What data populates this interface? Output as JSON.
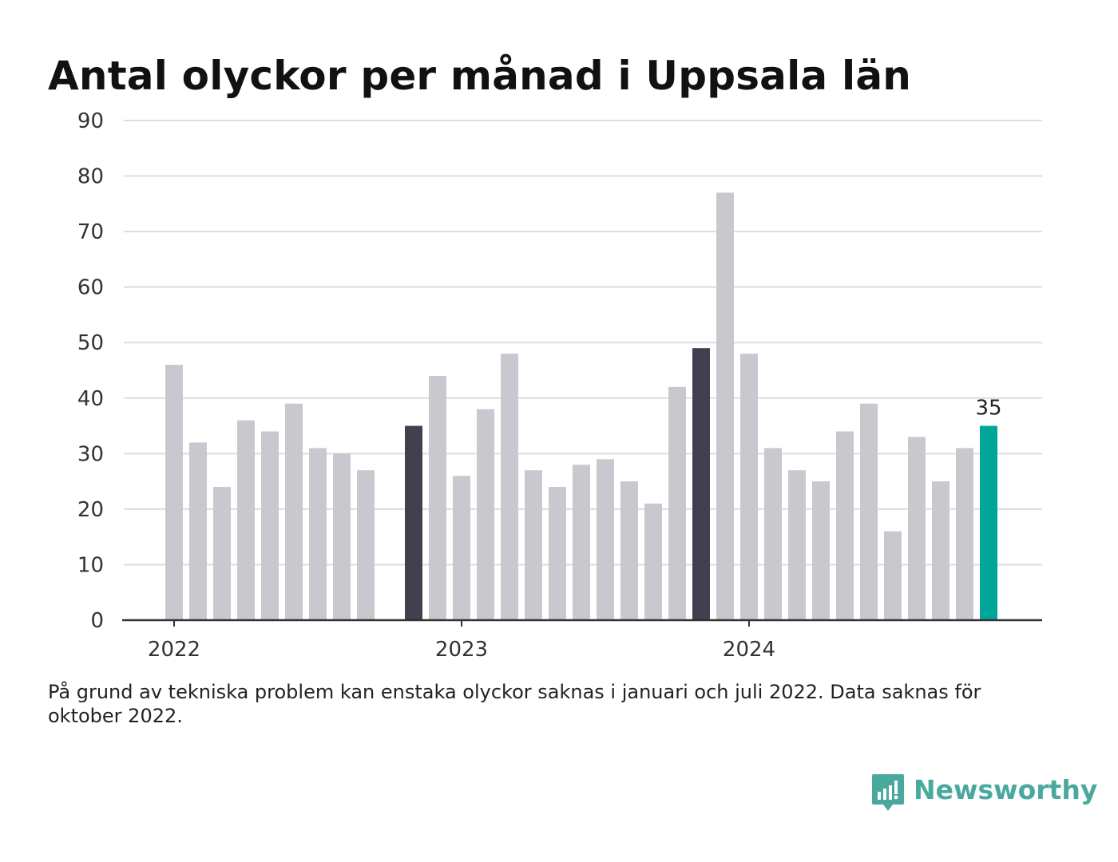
{
  "title": "Antal olyckor per månad i Uppsala län",
  "footnote": "På grund av tekniska problem kan enstaka olyckor saknas i januari och juli 2022. Data saknas för oktober 2022.",
  "brand": {
    "name": "Newsworthy",
    "icon": "newsworthy-logo-icon",
    "color": "#4ba89e"
  },
  "colors": {
    "default": "#c9c8cf",
    "highlight": "#40404e",
    "latest": "#00a59a",
    "grid": "#dddddd",
    "axis": "#333333"
  },
  "chart_data": {
    "type": "bar",
    "ylim": [
      0,
      90
    ],
    "yticks": [
      0,
      10,
      20,
      30,
      40,
      50,
      60,
      70,
      80,
      90
    ],
    "xtick_labels": [
      {
        "label": "2022",
        "at": "2022-01"
      },
      {
        "label": "2023",
        "at": "2023-01"
      },
      {
        "label": "2024",
        "at": "2024-01"
      }
    ],
    "grid": true,
    "categories": [
      "2022-01",
      "2022-02",
      "2022-03",
      "2022-04",
      "2022-05",
      "2022-06",
      "2022-07",
      "2022-08",
      "2022-09",
      "2022-10",
      "2022-11",
      "2022-12",
      "2023-01",
      "2023-02",
      "2023-03",
      "2023-04",
      "2023-05",
      "2023-06",
      "2023-07",
      "2023-08",
      "2023-09",
      "2023-10",
      "2023-11",
      "2023-12",
      "2024-01",
      "2024-02",
      "2024-03",
      "2024-04",
      "2024-05",
      "2024-06",
      "2024-07",
      "2024-08",
      "2024-09",
      "2024-10",
      "2024-11",
      "2024-12"
    ],
    "values": [
      46,
      32,
      24,
      36,
      34,
      39,
      31,
      30,
      27,
      null,
      35,
      44,
      26,
      38,
      48,
      27,
      24,
      28,
      29,
      25,
      21,
      42,
      49,
      77,
      48,
      31,
      27,
      25,
      34,
      39,
      16,
      33,
      25,
      31,
      35,
      null
    ],
    "highlight": [
      "2022-11",
      "2023-11"
    ],
    "latest": "2024-11",
    "data_labels": [
      {
        "category": "2024-11",
        "text": "35"
      }
    ]
  }
}
